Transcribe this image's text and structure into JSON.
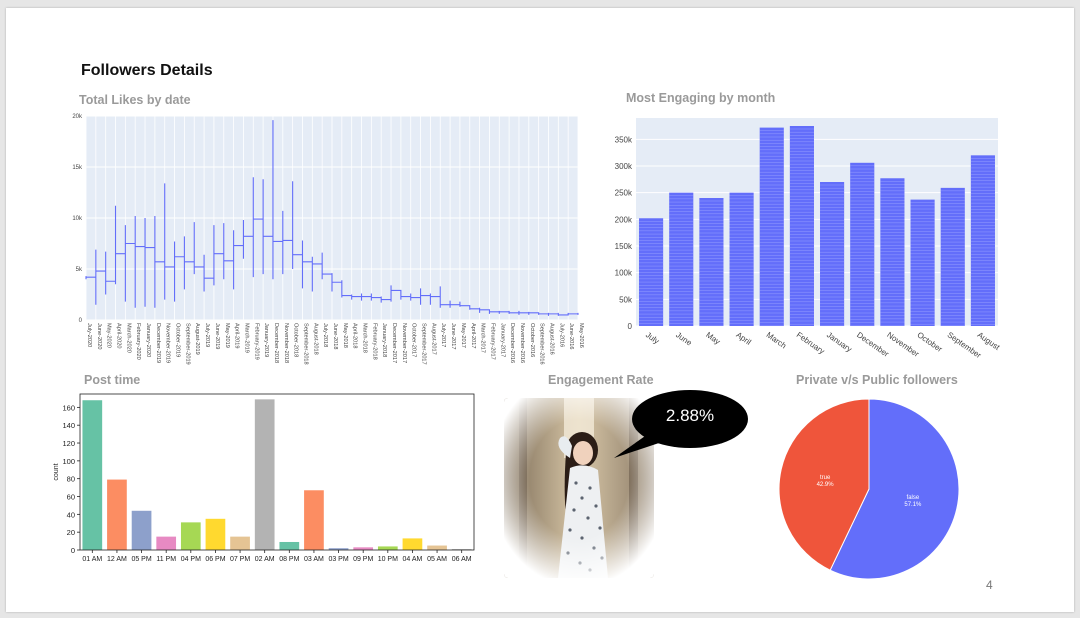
{
  "slide": {
    "title": "Followers Details",
    "page_number": "4"
  },
  "panels": {
    "likes_title": "Total Likes by date",
    "engaging_title": "Most Engaging by month",
    "post_time_title": "Post time",
    "engagement_title": "Engagement Rate",
    "private_title": "Private v/s Public followers"
  },
  "engagement": {
    "value": "2.88%"
  },
  "colors": {
    "plotly_blue": "#636efa",
    "plotly_red": "#ef553b",
    "plot_bg": "#e5ecf6"
  },
  "chart_data": [
    {
      "type": "line",
      "title": "Total Likes by date",
      "ylim": [
        0,
        20000
      ],
      "y_ticks": [
        "0",
        "5k",
        "10k",
        "15k",
        "20k"
      ],
      "x_tick_labels": [
        "July-2020",
        "June-2020",
        "May-2020",
        "April-2020",
        "March-2020",
        "February-2020",
        "January-2020",
        "December-2019",
        "November-2019",
        "October-2019",
        "September-2019",
        "August-2019",
        "July-2019",
        "June-2019",
        "May-2019",
        "April-2019",
        "March-2019",
        "February-2019",
        "January-2019",
        "December-2018",
        "November-2018",
        "October-2018",
        "September-2018",
        "August-2018",
        "July-2018",
        "June-2018",
        "May-2018",
        "April-2018",
        "March-2018",
        "February-2018",
        "January-2018",
        "December-2017",
        "November-2017",
        "October-2017",
        "September-2017",
        "August-2017",
        "July-2017",
        "June-2017",
        "May-2017",
        "April-2017",
        "March-2017",
        "February-2017",
        "January-2017",
        "December-2016",
        "November-2016",
        "October-2016",
        "September-2016",
        "August-2016",
        "July-2016",
        "June-2016",
        "May-2016"
      ],
      "series": [
        {
          "segments": [
            {
              "min": 4000,
              "max": 4300,
              "end": 4200
            },
            {
              "min": 1500,
              "max": 6900,
              "end": 4800
            },
            {
              "min": 2500,
              "max": 6700,
              "end": 3800
            },
            {
              "min": 3500,
              "max": 11200,
              "end": 6500
            },
            {
              "min": 1800,
              "max": 9300,
              "end": 7500
            },
            {
              "min": 1200,
              "max": 10200,
              "end": 7200
            },
            {
              "min": 1300,
              "max": 10000,
              "end": 7100
            },
            {
              "min": 1200,
              "max": 10200,
              "end": 5700
            },
            {
              "min": 2000,
              "max": 13400,
              "end": 5200
            },
            {
              "min": 1800,
              "max": 7700,
              "end": 6200
            },
            {
              "min": 3000,
              "max": 8200,
              "end": 5700
            },
            {
              "min": 4500,
              "max": 9600,
              "end": 5200
            },
            {
              "min": 2800,
              "max": 6400,
              "end": 4100
            },
            {
              "min": 3400,
              "max": 9300,
              "end": 6500
            },
            {
              "min": 4000,
              "max": 9500,
              "end": 5800
            },
            {
              "min": 3000,
              "max": 8800,
              "end": 7300
            },
            {
              "min": 6000,
              "max": 9800,
              "end": 8200
            },
            {
              "min": 4200,
              "max": 14000,
              "end": 9900
            },
            {
              "min": 4500,
              "max": 13800,
              "end": 8200
            },
            {
              "min": 4000,
              "max": 19600,
              "end": 7700
            },
            {
              "min": 4500,
              "max": 10700,
              "end": 7800
            },
            {
              "min": 5000,
              "max": 13600,
              "end": 6400
            },
            {
              "min": 3100,
              "max": 7800,
              "end": 5700
            },
            {
              "min": 2800,
              "max": 6200,
              "end": 5500
            },
            {
              "min": 4000,
              "max": 6600,
              "end": 4500
            },
            {
              "min": 2800,
              "max": 4600,
              "end": 3700
            },
            {
              "min": 2200,
              "max": 3900,
              "end": 2400
            },
            {
              "min": 2000,
              "max": 2500,
              "end": 2300
            },
            {
              "min": 1900,
              "max": 2600,
              "end": 2300
            },
            {
              "min": 1900,
              "max": 2600,
              "end": 2200
            },
            {
              "min": 1700,
              "max": 2300,
              "end": 2000
            },
            {
              "min": 1800,
              "max": 3400,
              "end": 2900
            },
            {
              "min": 2000,
              "max": 2900,
              "end": 2300
            },
            {
              "min": 1900,
              "max": 2600,
              "end": 2200
            },
            {
              "min": 1500,
              "max": 3100,
              "end": 2400
            },
            {
              "min": 1500,
              "max": 2600,
              "end": 2300
            },
            {
              "min": 1200,
              "max": 3300,
              "end": 1500
            },
            {
              "min": 1200,
              "max": 1900,
              "end": 1500
            },
            {
              "min": 1300,
              "max": 1800,
              "end": 1400
            },
            {
              "min": 1000,
              "max": 1400,
              "end": 1100
            },
            {
              "min": 700,
              "max": 1200,
              "end": 1000
            },
            {
              "min": 600,
              "max": 900,
              "end": 800
            },
            {
              "min": 600,
              "max": 900,
              "end": 800
            },
            {
              "min": 600,
              "max": 900,
              "end": 700
            },
            {
              "min": 500,
              "max": 900,
              "end": 700
            },
            {
              "min": 500,
              "max": 800,
              "end": 700
            },
            {
              "min": 500,
              "max": 700,
              "end": 600
            },
            {
              "min": 400,
              "max": 700,
              "end": 600
            },
            {
              "min": 400,
              "max": 700,
              "end": 500
            },
            {
              "min": 500,
              "max": 700,
              "end": 600
            },
            {
              "min": 500,
              "max": 700,
              "end": 600
            }
          ]
        }
      ]
    },
    {
      "type": "bar",
      "title": "Most Engaging by month",
      "categories": [
        "July",
        "June",
        "May",
        "April",
        "March",
        "February",
        "January",
        "December",
        "November",
        "October",
        "September",
        "August"
      ],
      "values": [
        202000,
        250000,
        240000,
        250000,
        372000,
        375000,
        270000,
        306000,
        277000,
        237000,
        259000,
        320000
      ],
      "ylim": [
        0,
        390000
      ],
      "y_ticks": [
        "0",
        "50k",
        "100k",
        "150k",
        "200k",
        "250k",
        "300k",
        "350k"
      ]
    },
    {
      "type": "bar",
      "title": "Post time",
      "ylabel": "count",
      "categories": [
        "01 AM",
        "12 AM",
        "05 PM",
        "11 PM",
        "04 PM",
        "06 PM",
        "07 PM",
        "02 AM",
        "08 PM",
        "03 AM",
        "03 PM",
        "09 PM",
        "10 PM",
        "04 AM",
        "05 AM",
        "06 AM"
      ],
      "values": [
        168,
        79,
        44,
        15,
        31,
        35,
        15,
        169,
        9,
        67,
        2,
        3,
        4,
        13,
        5,
        1
      ],
      "colors": [
        "#66c2a5",
        "#fc8d62",
        "#8da0cb",
        "#e78ac3",
        "#a6d854",
        "#ffd92f",
        "#e5c494",
        "#b3b3b3",
        "#66c2a5",
        "#fc8d62",
        "#8da0cb",
        "#e78ac3",
        "#a6d854",
        "#ffd92f",
        "#e5c494",
        "#b3b3b3"
      ],
      "ylim": [
        0,
        175
      ],
      "y_ticks": [
        "0",
        "20",
        "40",
        "60",
        "80",
        "100",
        "120",
        "140",
        "160"
      ]
    },
    {
      "type": "pie",
      "title": "Private v/s Public followers",
      "slices": [
        {
          "label": "false",
          "value": 57.1,
          "text": "57.1%",
          "color": "#636efa"
        },
        {
          "label": "true",
          "value": 42.9,
          "text": "42.9%",
          "color": "#ef553b"
        }
      ]
    }
  ]
}
